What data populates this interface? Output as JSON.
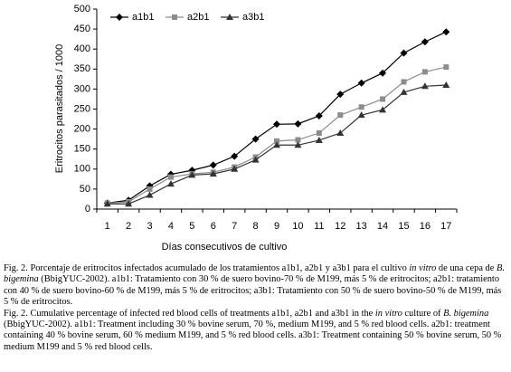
{
  "chart_data": {
    "type": "line",
    "x_label": "Días consecutivos de cultivo",
    "y_label": "Eritrocitos parasitados / 1000",
    "categories": [
      "1",
      "2",
      "3",
      "4",
      "5",
      "6",
      "7",
      "8",
      "9",
      "10",
      "11",
      "12",
      "13",
      "14",
      "15",
      "16",
      "17"
    ],
    "series": [
      {
        "name": "a1b1",
        "color": "#000000",
        "marker": "diamond",
        "values": [
          15,
          22,
          58,
          87,
          97,
          110,
          132,
          175,
          212,
          213,
          233,
          287,
          315,
          340,
          390,
          418,
          443
        ]
      },
      {
        "name": "a2b1",
        "color": "#8c8c8c",
        "marker": "square",
        "values": [
          15,
          18,
          50,
          80,
          88,
          92,
          105,
          130,
          170,
          173,
          190,
          235,
          255,
          275,
          318,
          343,
          355
        ]
      },
      {
        "name": "a3b1",
        "color": "#333333",
        "marker": "triangle",
        "values": [
          13,
          13,
          35,
          63,
          85,
          88,
          100,
          123,
          160,
          160,
          172,
          190,
          235,
          248,
          292,
          307,
          310
        ]
      }
    ],
    "ylim": [
      0,
      500
    ],
    "yticks": [
      0,
      50,
      100,
      150,
      200,
      250,
      300,
      350,
      400,
      450,
      500
    ],
    "grid": false,
    "legend": "top-left"
  },
  "caption": [
    [
      {
        "text": "Fig. 2. Porcentaje de eritrocitos infectados acumulado de los tratamientos a1b1, a2b1 y a3b1 para el cultivo "
      },
      {
        "text": "in vitro",
        "italic": true
      },
      {
        "text": " de una cepa de "
      },
      {
        "text": "B. bigemina",
        "italic": true
      },
      {
        "text": " (BbigYUC-2002). a1b1: Tratamiento con 30 % de suero bovino-70 % de M199, más 5 % de eritrocitos; a2b1: tratamiento con 40 % de suero bovino-60 % de M199, más 5 % de eritrocitos; a3b1: Tratamiento con 50 % de suero bovino-50 % de M199, más 5 % de eritrocitos."
      }
    ],
    [
      {
        "text": "Fig. 2. Cumulative percentage of infected red blood cells of treatments a1b1, a2b1 and a3b1 in the "
      },
      {
        "text": "in vitro",
        "italic": true
      },
      {
        "text": " culture of "
      },
      {
        "text": "B. bigemina",
        "italic": true
      },
      {
        "text": " (BbigYUC-2002). a1b1: Treatment including 30 % bovine serum, 70 %, medium M199, and 5 % red blood cells. a2b1: treatment containing 40 % bovine serum, 60 % medium M199, and 5 % red blood cells. a3b1: Treatment containing 50 % bovine serum, 50 % medium M199 and 5 % red blood cells."
      }
    ]
  ]
}
